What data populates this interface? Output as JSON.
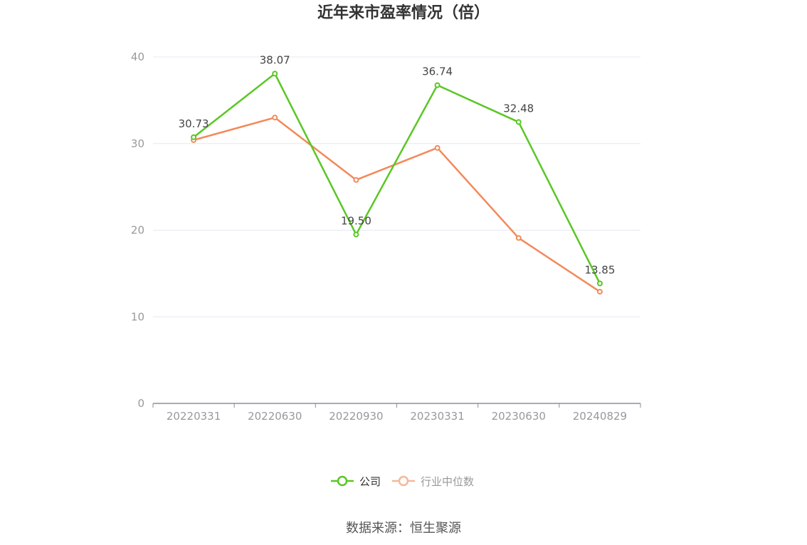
{
  "chart_data": {
    "type": "line",
    "title": "近年来市盈率情况（倍）",
    "categories": [
      "20220331",
      "20220630",
      "20220930",
      "20230331",
      "20230630",
      "20240829"
    ],
    "ylim": [
      0,
      40
    ],
    "yticks": [
      0,
      10,
      20,
      30,
      40
    ],
    "grid": true,
    "legend_position": "bottom-center",
    "series": [
      {
        "name": "公司",
        "color": "#5ac725",
        "values": [
          30.73,
          38.07,
          19.5,
          36.74,
          32.48,
          13.85
        ],
        "labels": [
          "30.73",
          "38.07",
          "19.50",
          "36.74",
          "32.48",
          "13.85"
        ]
      },
      {
        "name": "行业中位数",
        "color": "#f28a5a",
        "legend_color": "#f5b89a",
        "values": [
          30.4,
          33.0,
          25.8,
          29.5,
          19.1,
          12.9
        ]
      }
    ]
  },
  "source_text": "数据来源：恒生聚源"
}
